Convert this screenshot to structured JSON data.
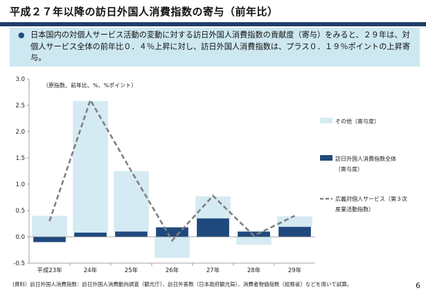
{
  "header": {
    "title": "平成２７年以降の訪日外国人消費指数の寄与（前年比）",
    "summary": "日本国内の対個人サービス活動の変動に対する訪日外国人消費指数の貢献度（寄与）をみると、２９年は、対個人サービス全体の前年比０．４％上昇に対し、訪日外国人消費指数は、プラス０．１９％ポイントの上昇寄与。"
  },
  "footer": {
    "note": "(資料）訪日外国人消費指数：訪日外国人消費動向調査（観光庁）、訪日外客数（日本政府観光局）、消費者物価指数（総務省）などを用いて試算。",
    "page_number": "6"
  },
  "colors": {
    "other_bar": "#d5ebf3",
    "visitor_bar": "#1f497d",
    "line": "#7f7f7f",
    "topbar": "#1f3d6b",
    "summary_bg": "#cde8f1"
  },
  "chart_data": {
    "type": "bar",
    "unit_note": "（原指数、前年比、%、%ポイント）",
    "categories": [
      "平成23年",
      "24年",
      "25年",
      "26年",
      "27年",
      "28年",
      "29年"
    ],
    "ylim": [
      -0.5,
      3.0
    ],
    "yticks": [
      "-0.5",
      "0.0",
      "0.5",
      "1.0",
      "1.5",
      "2.0",
      "2.5",
      "3.0"
    ],
    "grid": false,
    "legend_position": "right",
    "series": [
      {
        "name": "その他（寄与度）",
        "kind": "stacked-bar",
        "values": [
          0.4,
          2.5,
          1.15,
          -0.4,
          0.42,
          -0.15,
          0.2
        ]
      },
      {
        "name": "訪日外国人消費指数全体（寄与度）",
        "kind": "stacked-bar",
        "values": [
          -0.1,
          0.08,
          0.1,
          0.18,
          0.35,
          0.1,
          0.19
        ]
      },
      {
        "name": "広義対個人サービス（第３次産業活動指数）",
        "kind": "line",
        "values": [
          0.3,
          2.6,
          1.25,
          -0.07,
          0.78,
          0.02,
          0.4
        ]
      }
    ],
    "legend_lines": [
      [
        "その他（寄与度）"
      ],
      [
        "訪日外国人消費指数全体",
        "（寄与度）"
      ],
      [
        "広義対個人サービス（第３次",
        "産業活動指数）"
      ]
    ]
  }
}
